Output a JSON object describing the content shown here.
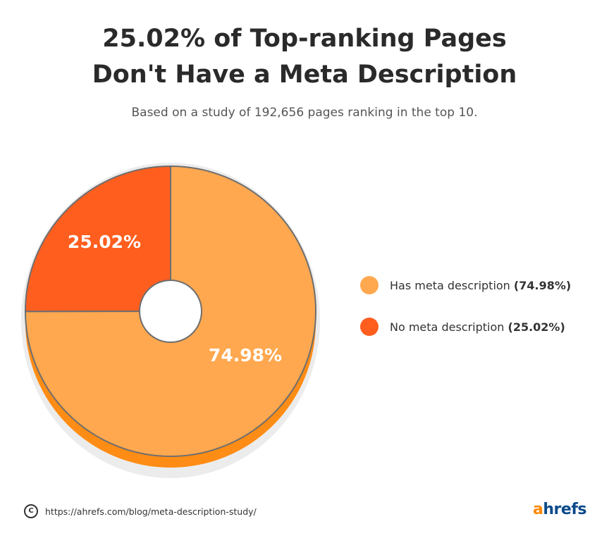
{
  "header": {
    "title_line1": "25.02% of Top-ranking Pages",
    "title_line2": "Don't Have a Meta Description",
    "subtitle": "Based on a study of 192,656 pages ranking in the top 10."
  },
  "chart_data": {
    "type": "pie",
    "title": "25.02% of Top-ranking Pages Don't Have a Meta Description",
    "subtitle": "Based on a study of 192,656 pages ranking in the top 10.",
    "slices": [
      {
        "name": "Has meta description",
        "value": 74.98,
        "label": "74.98%",
        "color": "#ffa84f"
      },
      {
        "name": "No meta description",
        "value": 25.02,
        "label": "25.02%",
        "color": "#ff5e1f"
      }
    ],
    "legend_position": "right"
  },
  "legend": {
    "items": [
      {
        "label": "Has meta description",
        "value": "(74.98%)",
        "color": "#ffa84f"
      },
      {
        "label": "No meta description",
        "value": "(25.02%)",
        "color": "#ff5e1f"
      }
    ]
  },
  "footer": {
    "copyright_symbol": "C",
    "source_url": "https://ahrefs.com/blog/meta-description-study/",
    "logo_a": "a",
    "logo_rest": "hrefs"
  },
  "colors": {
    "title": "#2a2a2a",
    "has_meta": "#ffa84f",
    "no_meta": "#ff5e1f",
    "side_has_meta": "#ff8c14",
    "side_no_meta": "#f0500f",
    "outline": "#6e6e6e",
    "logo_orange": "#ff8800",
    "logo_blue": "#0a4a8a"
  }
}
